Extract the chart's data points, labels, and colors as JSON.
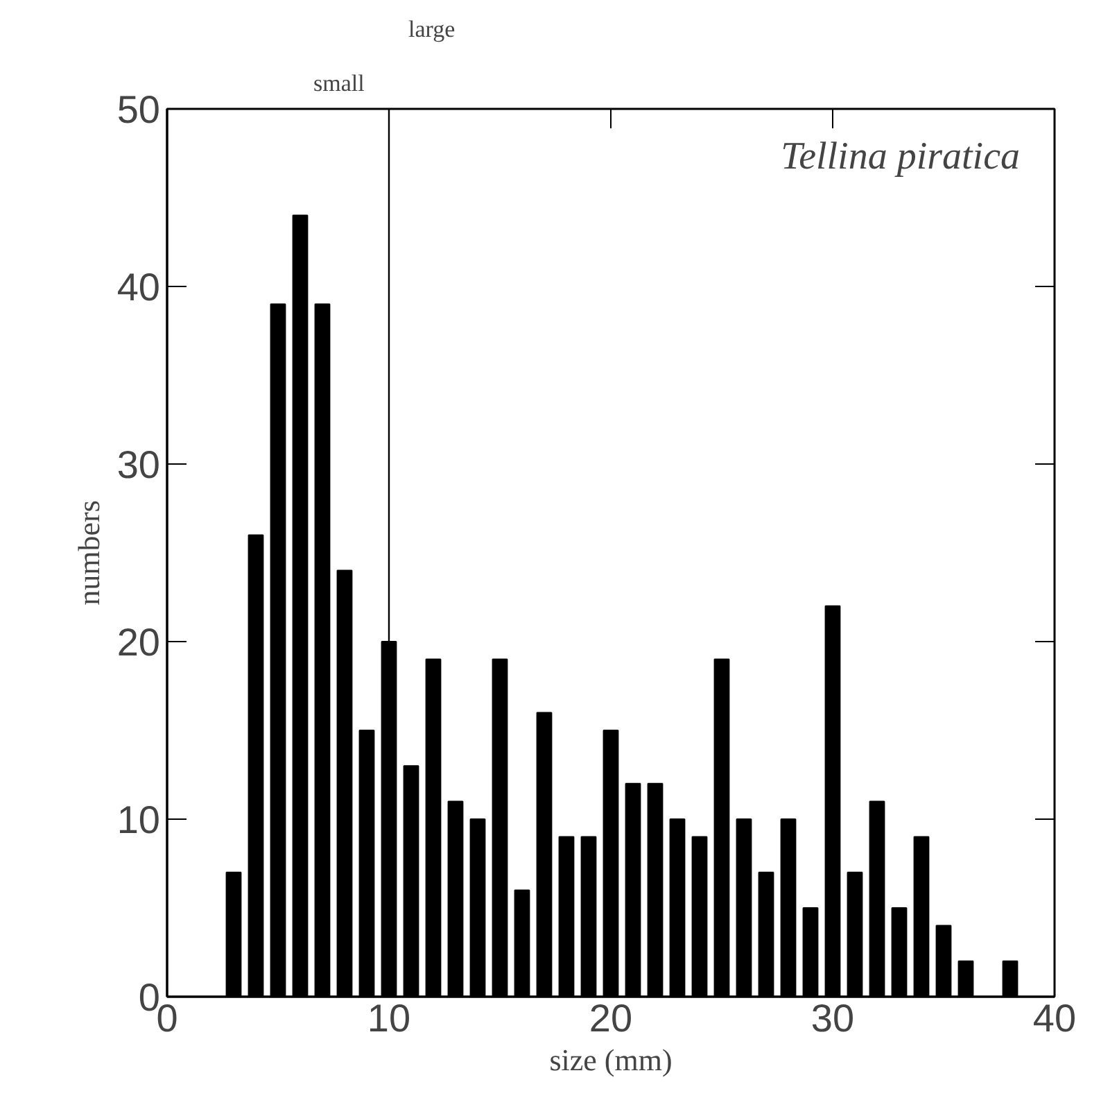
{
  "chart_data": {
    "type": "bar",
    "title": "Tellina piratica",
    "xlabel": "size (mm)",
    "ylabel": "numbers",
    "x": [
      3,
      4,
      5,
      6,
      7,
      8,
      9,
      10,
      11,
      12,
      13,
      14,
      15,
      16,
      17,
      18,
      19,
      20,
      21,
      22,
      23,
      24,
      25,
      26,
      27,
      28,
      29,
      30,
      31,
      32,
      33,
      34,
      35,
      36,
      38
    ],
    "values": [
      7,
      26,
      39,
      44,
      39,
      24,
      15,
      20,
      13,
      19,
      11,
      10,
      19,
      6,
      16,
      9,
      9,
      15,
      12,
      12,
      10,
      9,
      19,
      10,
      7,
      10,
      5,
      22,
      7,
      11,
      5,
      9,
      4,
      2,
      2
    ],
    "color": "#000000",
    "xlim": [
      0,
      40
    ],
    "ylim": [
      0,
      50
    ],
    "xticks": [
      0,
      10,
      20,
      30,
      40
    ],
    "yticks": [
      0,
      10,
      20,
      30,
      40,
      50
    ],
    "ref_lines": [
      {
        "axis": "x",
        "value": 10,
        "label": null
      }
    ],
    "annotations": [
      "small",
      "large"
    ],
    "grid": false
  }
}
